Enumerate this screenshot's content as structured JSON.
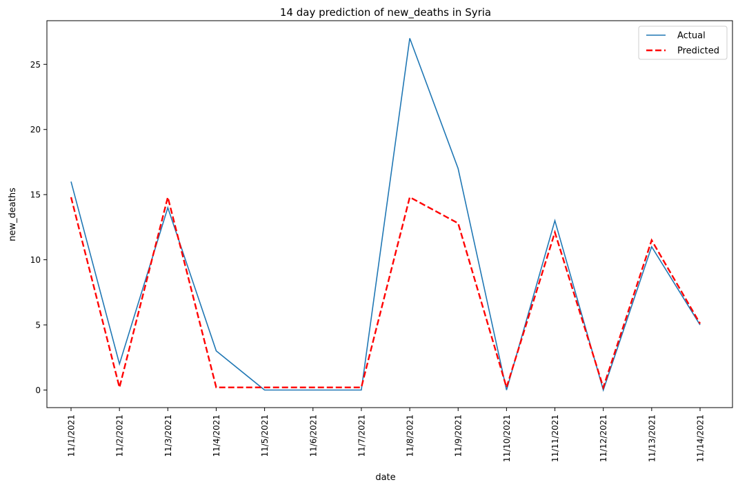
{
  "chart_data": {
    "type": "line",
    "title": "14 day prediction of new_deaths in Syria",
    "xlabel": "date",
    "ylabel": "new_deaths",
    "categories": [
      "11/1/2021",
      "11/2/2021",
      "11/3/2021",
      "11/4/2021",
      "11/5/2021",
      "11/6/2021",
      "11/7/2021",
      "11/8/2021",
      "11/9/2021",
      "11/10/2021",
      "11/11/2021",
      "11/12/2021",
      "11/13/2021",
      "11/14/2021"
    ],
    "yticks": [
      0,
      5,
      10,
      15,
      20,
      25
    ],
    "ylim": [
      -1.35,
      28.35
    ],
    "grid": false,
    "legend_position": "top-right",
    "series": [
      {
        "name": "Actual",
        "color": "#1f77b4",
        "dash": "solid",
        "values": [
          16,
          2,
          14,
          3,
          0,
          0,
          0,
          27,
          17,
          0,
          13,
          0,
          11,
          5
        ]
      },
      {
        "name": "Predicted",
        "color": "#ff0000",
        "dash": "dashed",
        "values": [
          14.8,
          0.2,
          14.8,
          0.2,
          0.2,
          0.2,
          0.2,
          14.8,
          12.8,
          0.2,
          12.1,
          0.2,
          11.5,
          5.1
        ]
      }
    ]
  }
}
